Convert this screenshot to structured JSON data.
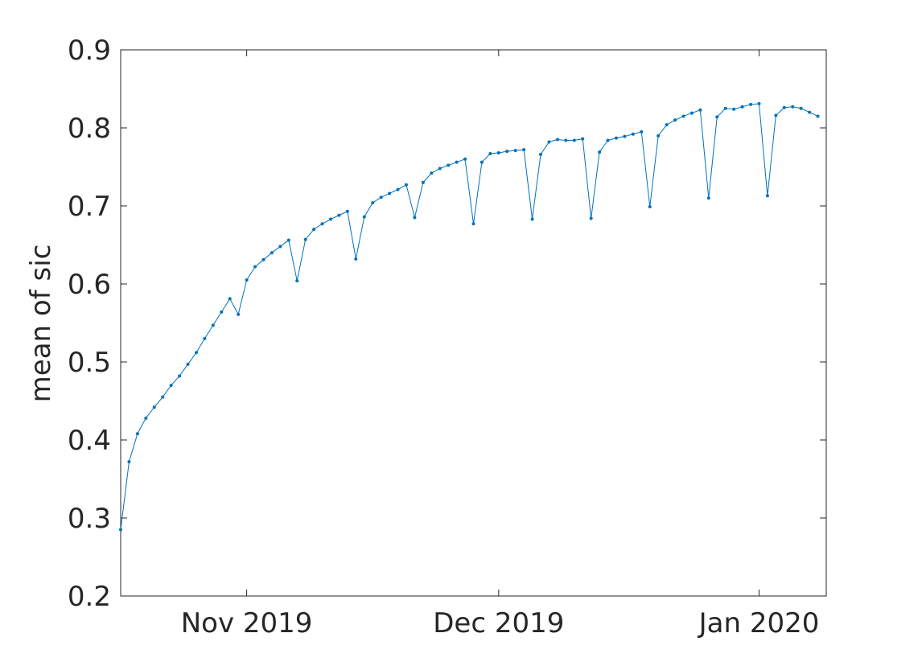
{
  "chart_data": {
    "type": "line",
    "title": "",
    "xlabel": "",
    "ylabel": "mean of sic",
    "ylim": [
      0.2,
      0.9
    ],
    "xlim": [
      "2019-10-17",
      "2020-01-09"
    ],
    "grid": false,
    "line_color": "#0072BD",
    "y_ticks": [
      "0.2",
      "0.3",
      "0.4",
      "0.5",
      "0.6",
      "0.7",
      "0.8",
      "0.9"
    ],
    "x_ticks": [
      {
        "label": "Nov 2019",
        "date": "2019-11-01"
      },
      {
        "label": "Dec 2019",
        "date": "2019-12-01"
      },
      {
        "label": "Jan 2020",
        "date": "2020-01-01"
      }
    ],
    "series": [
      {
        "x": [
          "2019-10-17",
          "2019-10-18",
          "2019-10-19",
          "2019-10-20",
          "2019-10-21",
          "2019-10-22",
          "2019-10-23",
          "2019-10-24",
          "2019-10-25",
          "2019-10-26",
          "2019-10-27",
          "2019-10-28",
          "2019-10-29",
          "2019-10-30",
          "2019-10-31",
          "2019-11-01",
          "2019-11-02",
          "2019-11-03",
          "2019-11-04",
          "2019-11-05",
          "2019-11-06",
          "2019-11-07",
          "2019-11-08",
          "2019-11-09",
          "2019-11-10",
          "2019-11-11",
          "2019-11-12",
          "2019-11-13",
          "2019-11-14",
          "2019-11-15",
          "2019-11-16",
          "2019-11-17",
          "2019-11-18",
          "2019-11-19",
          "2019-11-20",
          "2019-11-21",
          "2019-11-22",
          "2019-11-23",
          "2019-11-24",
          "2019-11-25",
          "2019-11-26",
          "2019-11-27",
          "2019-11-28",
          "2019-11-29",
          "2019-11-30",
          "2019-12-01",
          "2019-12-02",
          "2019-12-03",
          "2019-12-04",
          "2019-12-05",
          "2019-12-06",
          "2019-12-07",
          "2019-12-08",
          "2019-12-09",
          "2019-12-10",
          "2019-12-11",
          "2019-12-12",
          "2019-12-13",
          "2019-12-14",
          "2019-12-15",
          "2019-12-16",
          "2019-12-17",
          "2019-12-18",
          "2019-12-19",
          "2019-12-20",
          "2019-12-21",
          "2019-12-22",
          "2019-12-23",
          "2019-12-24",
          "2019-12-25",
          "2019-12-26",
          "2019-12-27",
          "2019-12-28",
          "2019-12-29",
          "2019-12-30",
          "2019-12-31",
          "2020-01-01",
          "2020-01-02",
          "2020-01-03",
          "2020-01-04",
          "2020-01-05",
          "2020-01-06",
          "2020-01-07",
          "2020-01-08"
        ],
        "values": [
          0.285,
          0.372,
          0.408,
          0.428,
          0.442,
          0.455,
          0.47,
          0.482,
          0.497,
          0.512,
          0.53,
          0.547,
          0.564,
          0.581,
          0.561,
          0.605,
          0.622,
          0.631,
          0.64,
          0.648,
          0.656,
          0.604,
          0.657,
          0.67,
          0.677,
          0.683,
          0.688,
          0.693,
          0.632,
          0.686,
          0.704,
          0.711,
          0.716,
          0.721,
          0.727,
          0.685,
          0.73,
          0.742,
          0.748,
          0.752,
          0.756,
          0.76,
          0.677,
          0.756,
          0.767,
          0.768,
          0.77,
          0.771,
          0.772,
          0.683,
          0.766,
          0.782,
          0.785,
          0.784,
          0.784,
          0.786,
          0.684,
          0.769,
          0.784,
          0.787,
          0.789,
          0.792,
          0.795,
          0.699,
          0.79,
          0.804,
          0.81,
          0.815,
          0.819,
          0.823,
          0.71,
          0.814,
          0.825,
          0.824,
          0.827,
          0.83,
          0.831,
          0.713,
          0.816,
          0.826,
          0.827,
          0.825,
          0.82,
          0.815
        ]
      }
    ]
  }
}
